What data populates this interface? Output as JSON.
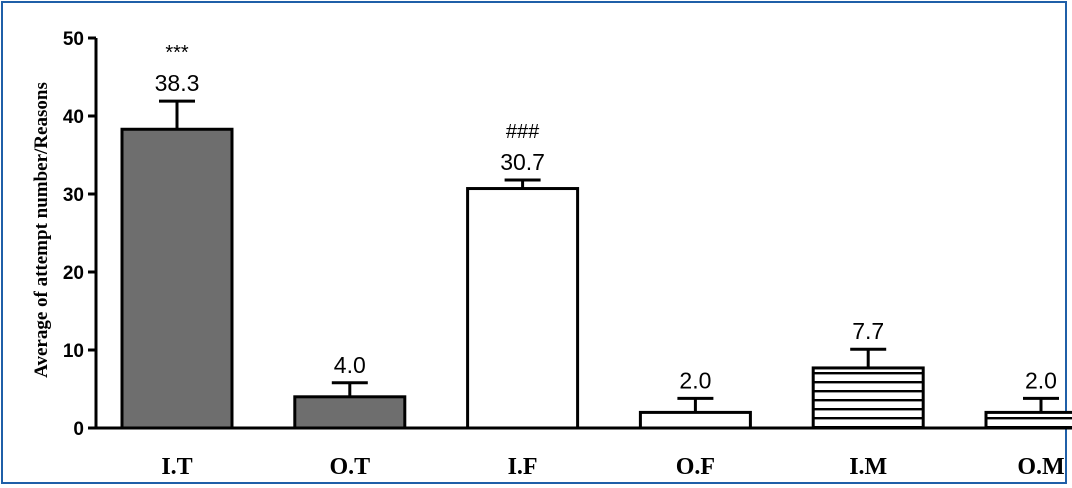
{
  "chart_data": {
    "type": "bar",
    "title": "",
    "xlabel": "",
    "ylabel": "Average of attempt number/Reasons",
    "ylim": [
      0,
      50
    ],
    "yticks": [
      0,
      10,
      20,
      30,
      40,
      50
    ],
    "grid": false,
    "categories": [
      "I.T",
      "O.T",
      "I.F",
      "O.F",
      "I.M",
      "O.M"
    ],
    "values": [
      38.3,
      4.0,
      30.7,
      2.0,
      7.7,
      2.0
    ],
    "errors": [
      3.6,
      1.8,
      1.1,
      1.8,
      2.4,
      1.8
    ],
    "value_labels": [
      "38.3",
      "4.0",
      "30.7",
      "2.0",
      "7.7",
      "2.0"
    ],
    "significance": [
      "***",
      "",
      "###",
      "",
      "",
      ""
    ],
    "fill_styles": [
      "solid-gray",
      "solid-gray",
      "white",
      "white",
      "horizontal-stripes",
      "horizontal-stripes"
    ],
    "colors": {
      "gray_fill": "#6e6e6e",
      "outline": "#000000",
      "frame": "#1f5fa8"
    }
  }
}
